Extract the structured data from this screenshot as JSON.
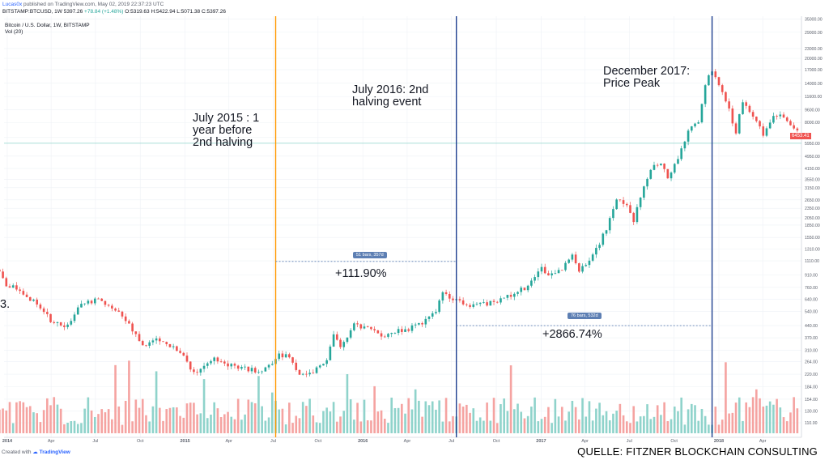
{
  "header": {
    "publisher_user": "Lucas0x",
    "publisher_rest": " published on TradingView.com, May 02, 2019 22:37:23 UTC",
    "symbol_line": "BITSTAMP:BTCUSD, 1W  5397.26  ",
    "change": "+78.84 (+1.48%)",
    "ohlc": "  O:5319.63  H:5422.94  L:5071.38  C:5397.26"
  },
  "legend": {
    "title": "Bitcoin / U.S. Dollar, 1W, BITSTAMP",
    "volume": "Vol (20)"
  },
  "annotations": {
    "july2015": "July 2015 : 1\nyear before\n2nd halving",
    "july2016": "July 2016: 2nd\nhalving event",
    "dec2017": "December 2017:\nPrice Peak",
    "pct1": "+111.90%",
    "pct2": "+2866.74%",
    "badge1": "51 bars, 357d",
    "badge2": "76 bars, 532d",
    "left_fragment": "3."
  },
  "footer": {
    "created_with": "Created with ",
    "tradingview": "TradingView",
    "source": "QUELLE: FITZNER BLOCKCHAIN CONSULTING"
  },
  "colors": {
    "up": "#26a69a",
    "down": "#ef5350",
    "vol_up": "#8fd3cb",
    "vol_down": "#f5a3a1",
    "orange": "#ff9800",
    "blue": "#1e3f8f",
    "grid": "#eef1f6"
  },
  "chart_data": {
    "type": "candlestick",
    "interval": "1W",
    "scale": "log",
    "y_ticks": [
      35000,
      29000,
      23000,
      20000,
      17000,
      14000,
      11600,
      9600,
      8000,
      6453.41,
      5950,
      4950,
      4150,
      3550,
      3150,
      2650,
      2350,
      2050,
      1850,
      1550,
      1310,
      1110,
      910,
      760,
      640,
      540,
      440,
      370,
      310,
      264,
      220,
      184,
      154,
      130,
      110
    ],
    "x_ticks": [
      "2014",
      "Apr",
      "Jul",
      "Oct",
      "2015",
      "Apr",
      "Jul",
      "Oct",
      "2016",
      "Apr",
      "Jul",
      "Oct",
      "2017",
      "Apr",
      "Jul",
      "Oct",
      "2018",
      "Apr"
    ],
    "last_price": "6453.41",
    "anchors": [
      [
        "2013-12-02",
        1100
      ],
      [
        "2013-12-30",
        800
      ],
      [
        "2014-02-03",
        700
      ],
      [
        "2014-03-03",
        600
      ],
      [
        "2014-04-07",
        450
      ],
      [
        "2014-05-05",
        440
      ],
      [
        "2014-06-02",
        620
      ],
      [
        "2014-07-07",
        630
      ],
      [
        "2014-08-04",
        580
      ],
      [
        "2014-09-01",
        480
      ],
      [
        "2014-10-06",
        330
      ],
      [
        "2014-11-03",
        370
      ],
      [
        "2014-12-01",
        330
      ],
      [
        "2015-01-05",
        270
      ],
      [
        "2015-01-19",
        220
      ],
      [
        "2015-02-02",
        230
      ],
      [
        "2015-03-02",
        270
      ],
      [
        "2015-04-06",
        250
      ],
      [
        "2015-05-04",
        240
      ],
      [
        "2015-06-01",
        230
      ],
      [
        "2015-06-29",
        250
      ],
      [
        "2015-07-13",
        290
      ],
      [
        "2015-08-03",
        280
      ],
      [
        "2015-08-24",
        220
      ],
      [
        "2015-09-21",
        230
      ],
      [
        "2015-10-19",
        270
      ],
      [
        "2015-11-02",
        380
      ],
      [
        "2015-11-16",
        330
      ],
      [
        "2015-12-14",
        440
      ],
      [
        "2016-01-11",
        420
      ],
      [
        "2016-02-08",
        380
      ],
      [
        "2016-03-07",
        410
      ],
      [
        "2016-04-04",
        420
      ],
      [
        "2016-05-02",
        450
      ],
      [
        "2016-05-30",
        530
      ],
      [
        "2016-06-13",
        720
      ],
      [
        "2016-06-27",
        650
      ],
      [
        "2016-07-11",
        660
      ],
      [
        "2016-08-08",
        575
      ],
      [
        "2016-09-05",
        600
      ],
      [
        "2016-10-03",
        615
      ],
      [
        "2016-11-07",
        705
      ],
      [
        "2016-12-05",
        760
      ],
      [
        "2017-01-02",
        1000
      ],
      [
        "2017-01-16",
        900
      ],
      [
        "2017-02-13",
        1000
      ],
      [
        "2017-03-06",
        1200
      ],
      [
        "2017-03-20",
        960
      ],
      [
        "2017-04-17",
        1180
      ],
      [
        "2017-05-15",
        1750
      ],
      [
        "2017-06-05",
        2600
      ],
      [
        "2017-06-26",
        2500
      ],
      [
        "2017-07-10",
        2000
      ],
      [
        "2017-07-24",
        2700
      ],
      [
        "2017-08-14",
        4200
      ],
      [
        "2017-09-04",
        4300
      ],
      [
        "2017-09-18",
        3700
      ],
      [
        "2017-10-09",
        4800
      ],
      [
        "2017-10-30",
        7000
      ],
      [
        "2017-11-20",
        8200
      ],
      [
        "2017-12-04",
        14000
      ],
      [
        "2017-12-18",
        17000
      ],
      [
        "2018-01-01",
        14000
      ],
      [
        "2018-01-15",
        11000
      ],
      [
        "2018-02-05",
        7000
      ],
      [
        "2018-02-19",
        11000
      ],
      [
        "2018-03-05",
        9500
      ],
      [
        "2018-03-19",
        8000
      ],
      [
        "2018-04-02",
        6800
      ],
      [
        "2018-04-23",
        9000
      ],
      [
        "2018-05-14",
        8500
      ],
      [
        "2018-06-04",
        7500
      ],
      [
        "2018-06-25",
        6300
      ]
    ],
    "markers": [
      {
        "date": "2015-07-06",
        "label": "July 2015 : 1 year before 2nd halving"
      },
      {
        "date": "2016-07-11",
        "label": "July 2016: 2nd halving event"
      },
      {
        "date": "2017-12-18",
        "label": "December 2017: Price Peak"
      }
    ],
    "measurements": [
      {
        "from": "2015-07-06",
        "to": "2016-07-11",
        "price": 1100,
        "bars": 51,
        "days": 357,
        "change_pct": 111.9
      },
      {
        "from": "2016-07-11",
        "to": "2017-12-18",
        "price": 440,
        "bars": 76,
        "days": 532,
        "change_pct": 2866.74
      }
    ]
  }
}
